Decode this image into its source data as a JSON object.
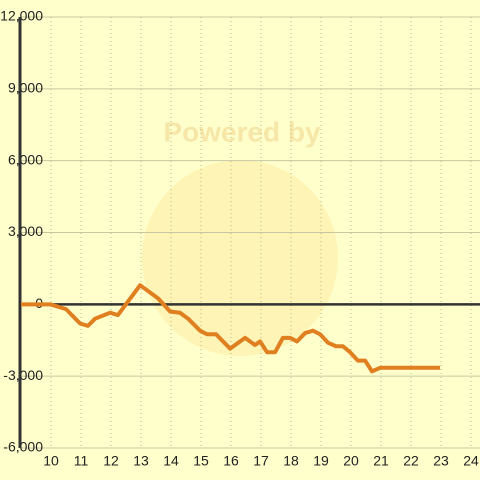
{
  "chart_data": {
    "type": "line",
    "watermark": "Powered by",
    "x": [
      9,
      9.97,
      10.5,
      10.97,
      11.23,
      11.47,
      11.97,
      12.23,
      12.97,
      13.57,
      13.97,
      14.3,
      14.57,
      14.97,
      15.2,
      15.5,
      15.97,
      16.47,
      16.8,
      16.97,
      17.2,
      17.47,
      17.73,
      17.97,
      18.2,
      18.47,
      18.73,
      18.97,
      19.23,
      19.5,
      19.73,
      19.97,
      20.23,
      20.47,
      20.7,
      20.97,
      22.97
    ],
    "series": [
      {
        "color": "#e07f1f",
        "values": [
          0,
          0,
          -200,
          -800,
          -900,
          -600,
          -350,
          -450,
          800,
          250,
          -300,
          -350,
          -600,
          -1100,
          -1250,
          -1250,
          -1850,
          -1400,
          -1700,
          -1550,
          -2000,
          -2000,
          -1400,
          -1400,
          -1550,
          -1200,
          -1100,
          -1250,
          -1600,
          -1750,
          -1750,
          -2000,
          -2350,
          -2350,
          -2800,
          -2650,
          -2650
        ]
      }
    ],
    "xlim": [
      9,
      24.3
    ],
    "xticks": [
      10,
      11,
      12,
      13,
      14,
      15,
      16,
      17,
      18,
      19,
      20,
      21,
      22,
      23,
      24
    ],
    "ylim": [
      -6000,
      12000
    ],
    "yticks": [
      {
        "value": -6000,
        "label": "-6,000"
      },
      {
        "value": -3000,
        "label": "-3,000"
      },
      0,
      {
        "value": 3000,
        "label": "3,000"
      },
      {
        "value": 6000,
        "label": "6,000"
      },
      {
        "value": 9000,
        "label": "9,000"
      },
      {
        "value": 12000,
        "label": "12,000"
      }
    ],
    "grid": true
  }
}
